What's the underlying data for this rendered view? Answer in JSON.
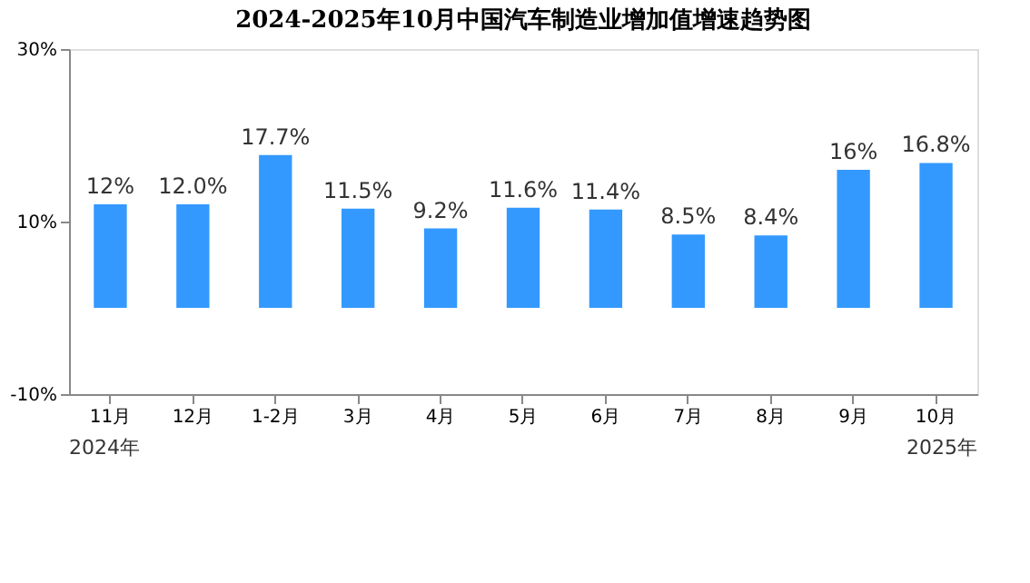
{
  "chart_data": {
    "type": "bar",
    "title": "2024-2025年10月中国汽车制造业增加值增速趋势图",
    "categories": [
      "11月",
      "12月",
      "1-2月",
      "3月",
      "4月",
      "5月",
      "6月",
      "7月",
      "8月",
      "9月",
      "10月"
    ],
    "values": [
      12,
      12.0,
      17.7,
      11.5,
      9.2,
      11.6,
      11.4,
      8.5,
      8.4,
      16,
      16.8
    ],
    "value_labels": [
      "12%",
      "12.0%",
      "17.7%",
      "11.5%",
      "9.2%",
      "11.6%",
      "11.4%",
      "8.5%",
      "8.4%",
      "16%",
      "16.8%"
    ],
    "color": "#3399ff",
    "ylim": [
      -10,
      30
    ],
    "yticks": [
      {
        "value": -10,
        "label": "-10%"
      },
      {
        "value": 10,
        "label": "10%"
      },
      {
        "value": 30,
        "label": "30%"
      }
    ],
    "grid": false,
    "annotations": [
      "2024年",
      "2025年"
    ]
  }
}
